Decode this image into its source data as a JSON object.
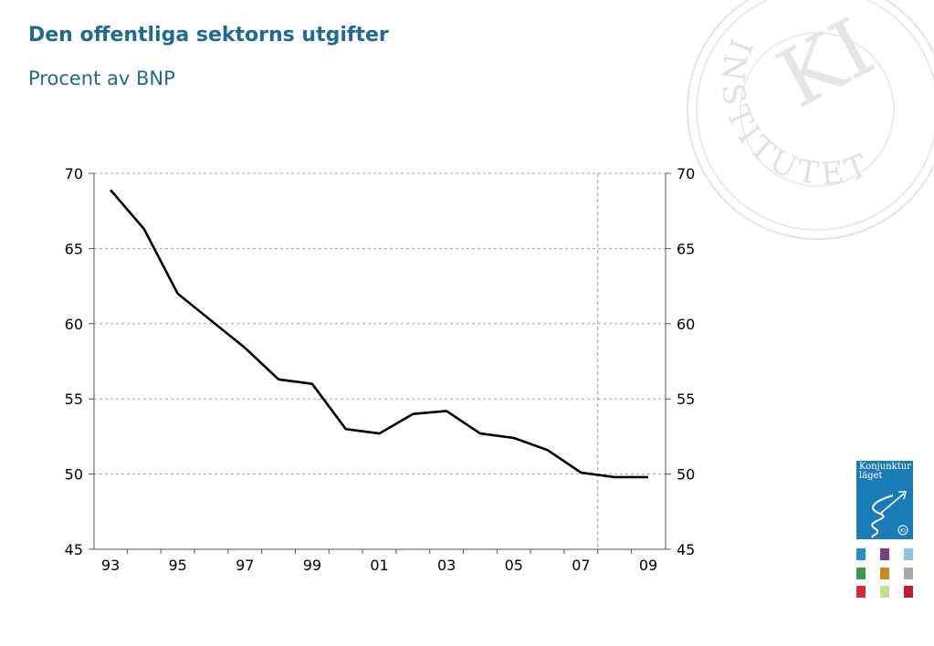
{
  "title": "Den offentliga sektorns utgifter",
  "subtitle": "Procent av BNP",
  "logo": {
    "seal_text": "INSTITUTET",
    "monogram": "KI",
    "report_cover_title_line1": "Konjunktur",
    "report_cover_title_line2": "läget",
    "report_cover_badge": "KI",
    "cover_color": "#1a7cb6",
    "swatch_colors": [
      "#2a8fc9",
      "#7b3f86",
      "#8ec2e0",
      "#3a9a48",
      "#c98a1e",
      "#a9a9a9",
      "#d42a3e",
      "#c8e08a",
      "#b52036"
    ]
  },
  "chart_data": {
    "type": "line",
    "title": "Den offentliga sektorns utgifter",
    "subtitle": "Procent av BNP",
    "xlabel": "",
    "ylabel": "",
    "ylim": [
      45,
      70
    ],
    "yticks": [
      45,
      50,
      55,
      60,
      65,
      70
    ],
    "xlim": [
      1993,
      2009
    ],
    "x_tick_labels": [
      "93",
      "95",
      "97",
      "99",
      "01",
      "03",
      "05",
      "07",
      "09"
    ],
    "x_tick_years": [
      1993,
      1995,
      1997,
      1999,
      2001,
      2003,
      2005,
      2007,
      2009
    ],
    "grid": "horizontal dashed",
    "forecast_divider_year": 2007.5,
    "line_color": "#000000",
    "series": [
      {
        "x": [
          1993,
          1994,
          1995,
          1996,
          1997,
          1998,
          1999,
          2000,
          2001,
          2002,
          2003,
          2004,
          2005,
          2006,
          2007,
          2008,
          2009
        ],
        "values": [
          68.9,
          66.3,
          62.0,
          60.2,
          58.4,
          56.3,
          56.0,
          53.0,
          52.7,
          54.0,
          54.2,
          52.7,
          52.4,
          51.6,
          50.1,
          49.8,
          49.8
        ]
      }
    ]
  }
}
